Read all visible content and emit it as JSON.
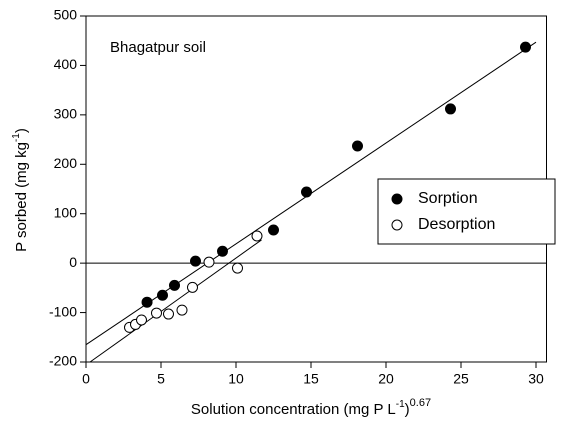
{
  "chart_data": {
    "type": "scatter",
    "annotation": "Bhagatpur soil",
    "x_label": {
      "text": "Solution concentration (mg P L",
      "sup1": "-1",
      "close": ")",
      "sup2": "0.67"
    },
    "y_label": {
      "text": "P sorbed (mg kg",
      "sup": "-1",
      "close": ")"
    },
    "xlim": [
      0,
      30.7
    ],
    "ylim": [
      -200,
      500
    ],
    "xticks": [
      0,
      5,
      10,
      15,
      20,
      25,
      30
    ],
    "yticks": [
      -200,
      -100,
      0,
      100,
      200,
      300,
      400,
      500
    ],
    "zero_line": 0,
    "legend": "right",
    "series": [
      {
        "name": "Sorption",
        "color": "#000000",
        "filled": true,
        "x": [
          4.07,
          5.1,
          5.9,
          7.3,
          9.1,
          12.5,
          14.7,
          18.1,
          24.3,
          29.3
        ],
        "values": [
          -79,
          -65,
          -45,
          4,
          24,
          67,
          144,
          237,
          312,
          437
        ],
        "fit": {
          "x": [
            0,
            30
          ],
          "y": [
            -165,
            447
          ]
        }
      },
      {
        "name": "Desorption",
        "color": "#000000",
        "filled": false,
        "x": [
          2.9,
          3.3,
          3.7,
          4.7,
          5.5,
          6.4,
          7.1,
          8.2,
          10.1,
          11.4
        ],
        "values": [
          -130,
          -124,
          -115,
          -101,
          -103,
          -95,
          -49,
          2,
          -10,
          55
        ],
        "fit": {
          "x": [
            0.27,
            11.7
          ],
          "y": [
            -200,
            47
          ]
        }
      }
    ]
  }
}
